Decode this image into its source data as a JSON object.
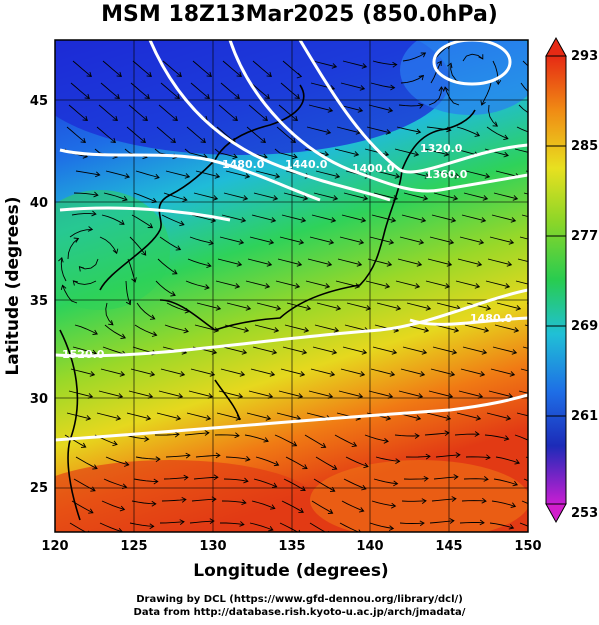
{
  "title": "MSM 18Z13Mar2025 (850.0hPa)",
  "x_axis": {
    "label": "Longitude (degrees)",
    "ticks": [
      "120",
      "125",
      "130",
      "135",
      "140",
      "145",
      "150"
    ]
  },
  "y_axis": {
    "label": "Latitude  (degrees)",
    "ticks": [
      "25",
      "30",
      "35",
      "40",
      "45"
    ]
  },
  "colorbar": {
    "labels": [
      "293",
      "285",
      "277",
      "269",
      "261",
      "253"
    ],
    "min": 253,
    "max": 293
  },
  "contour_labels": [
    "1320.0",
    "1360.0",
    "1400.0",
    "1440.0",
    "1480.0",
    "1480.0",
    "1520.0"
  ],
  "credits": [
    "Drawing by DCL (https://www.gfd-dennou.org/library/dcl/)",
    "Data from http://database.rish.kyoto-u.ac.jp/arch/jmadata/"
  ],
  "colors": {
    "cold": "#1c2bd6",
    "cool": "#1fa0e6",
    "mid": "#2ed25a",
    "warm": "#e6d81e",
    "hot": "#e23a14",
    "contour": "#ffffff",
    "streamline": "#000000",
    "coastline": "#000000"
  }
}
